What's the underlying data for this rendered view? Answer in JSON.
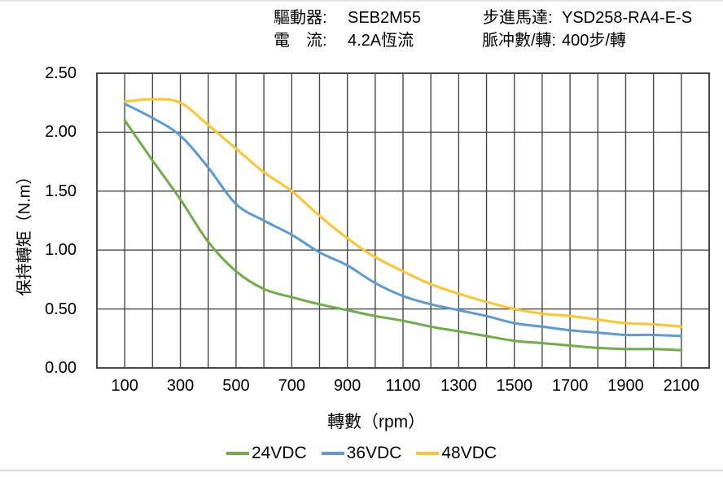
{
  "header": {
    "items_left": [
      {
        "label": "驅動器:",
        "value": "SEB2M55"
      },
      {
        "label": "電　流:",
        "value": "4.2A恆流"
      }
    ],
    "items_right": [
      {
        "label": "步進馬達:",
        "value": "YSD258-RA4-E-S"
      },
      {
        "label": "脈冲數/轉:",
        "value": "400步/轉"
      }
    ]
  },
  "chart_data": {
    "type": "line",
    "xlabel": "轉數（rpm）",
    "ylabel": "保持轉矩（N.m）",
    "xlim": [
      0,
      2200
    ],
    "ylim": [
      0,
      2.5
    ],
    "grid": true,
    "grid_x_step": 100,
    "grid_y_step": 0.5,
    "x_tick_labels": [
      100,
      300,
      500,
      700,
      900,
      1100,
      1300,
      1500,
      1700,
      1900,
      2100
    ],
    "y_tick_labels": [
      "0.00",
      "0.50",
      "1.00",
      "1.50",
      "2.00",
      "2.50"
    ],
    "x": [
      100,
      200,
      300,
      400,
      500,
      600,
      700,
      800,
      900,
      1000,
      1100,
      1200,
      1300,
      1400,
      1500,
      1600,
      1700,
      1800,
      1900,
      2000,
      2100
    ],
    "series": [
      {
        "name": "24VDC",
        "color": "#70AD47",
        "values": [
          2.1,
          1.76,
          1.43,
          1.07,
          0.82,
          0.67,
          0.6,
          0.54,
          0.49,
          0.44,
          0.4,
          0.35,
          0.31,
          0.27,
          0.23,
          0.21,
          0.19,
          0.17,
          0.16,
          0.16,
          0.15
        ]
      },
      {
        "name": "36VDC",
        "color": "#5B9BD5",
        "values": [
          2.24,
          2.12,
          1.97,
          1.7,
          1.39,
          1.25,
          1.13,
          0.98,
          0.87,
          0.72,
          0.61,
          0.54,
          0.49,
          0.44,
          0.38,
          0.35,
          0.32,
          0.3,
          0.28,
          0.28,
          0.27
        ]
      },
      {
        "name": "48VDC",
        "color": "#FFC32B",
        "values": [
          2.26,
          2.28,
          2.25,
          2.06,
          1.86,
          1.66,
          1.5,
          1.29,
          1.1,
          0.94,
          0.82,
          0.71,
          0.63,
          0.56,
          0.5,
          0.46,
          0.44,
          0.41,
          0.38,
          0.37,
          0.35
        ]
      }
    ],
    "legend_position": "bottom",
    "grid_color": "#474747"
  }
}
